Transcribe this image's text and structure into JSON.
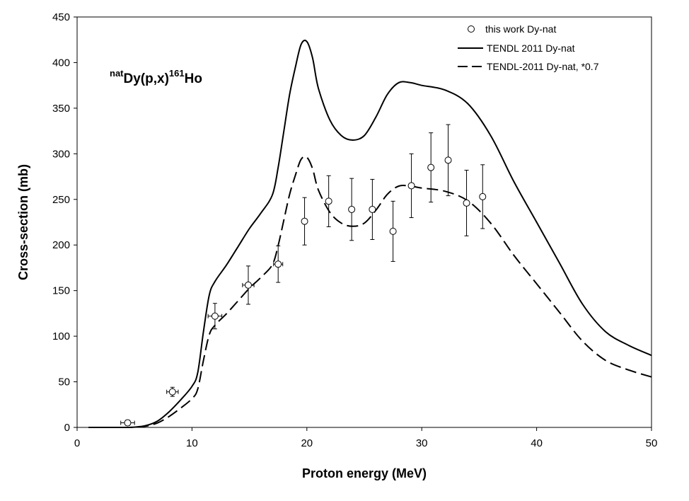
{
  "chart_data": {
    "type": "scatter",
    "title": "",
    "annotation": {
      "sup_left": "nat",
      "main": "Dy(p,x)",
      "sup_right": "161",
      "tail": "Ho"
    },
    "xlabel": "Proton energy (MeV)",
    "ylabel": "Cross-section (mb)",
    "xlim": [
      0,
      50
    ],
    "ylim": [
      0,
      450
    ],
    "xticks": [
      0,
      10,
      20,
      30,
      40,
      50
    ],
    "yticks": [
      0,
      50,
      100,
      150,
      200,
      250,
      300,
      350,
      400,
      450
    ],
    "grid": false,
    "legend_position": "top-right",
    "series": [
      {
        "name": "this work Dy-nat",
        "kind": "points",
        "points": [
          {
            "x": 4.4,
            "y": 5,
            "xerr": 0.6,
            "yerr": 3
          },
          {
            "x": 8.3,
            "y": 39,
            "xerr": 0.5,
            "yerr": 5
          },
          {
            "x": 12.0,
            "y": 122,
            "xerr": 0.6,
            "yerr": 14
          },
          {
            "x": 14.9,
            "y": 156,
            "xerr": 0.5,
            "yerr": 21
          },
          {
            "x": 17.5,
            "y": 179,
            "xerr": 0.4,
            "yerr": 20
          },
          {
            "x": 19.8,
            "y": 226,
            "xerr": 0,
            "yerr": 26
          },
          {
            "x": 21.9,
            "y": 248,
            "xerr": 0,
            "yerr": 28
          },
          {
            "x": 23.9,
            "y": 239,
            "xerr": 0,
            "yerr": 34
          },
          {
            "x": 25.7,
            "y": 239,
            "xerr": 0,
            "yerr": 33
          },
          {
            "x": 27.5,
            "y": 215,
            "xerr": 0,
            "yerr": 33
          },
          {
            "x": 29.1,
            "y": 265,
            "xerr": 0,
            "yerr": 35
          },
          {
            "x": 30.8,
            "y": 285,
            "xerr": 0,
            "yerr": 38
          },
          {
            "x": 32.3,
            "y": 293,
            "xerr": 0,
            "yerr": 39
          },
          {
            "x": 33.9,
            "y": 246,
            "xerr": 0,
            "yerr": 36
          },
          {
            "x": 35.3,
            "y": 253,
            "xerr": 0,
            "yerr": 35
          }
        ]
      },
      {
        "name": "TENDL 2011 Dy-nat",
        "kind": "solid",
        "x": [
          1,
          4,
          5,
          6,
          7,
          8,
          9,
          10,
          10.5,
          11,
          11.5,
          12,
          13,
          14,
          15,
          16,
          17,
          17.5,
          18,
          18.5,
          19,
          19.5,
          20,
          20.5,
          21,
          22,
          23,
          24,
          25,
          26,
          27,
          28,
          29,
          30,
          32,
          34,
          36,
          38,
          40,
          42,
          44,
          46,
          48,
          50
        ],
        "y": [
          0,
          0,
          0.3,
          2,
          7,
          17,
          30,
          45,
          60,
          105,
          145,
          160,
          178,
          198,
          218,
          235,
          255,
          285,
          325,
          365,
          395,
          420,
          423,
          405,
          372,
          337,
          320,
          315,
          320,
          340,
          365,
          378,
          378,
          375,
          370,
          355,
          320,
          270,
          225,
          180,
          135,
          105,
          90,
          79
        ]
      },
      {
        "name": "TENDL-2011 Dy-nat, *0.7",
        "kind": "dashed",
        "x": [
          1,
          4,
          5,
          6,
          7,
          8,
          9,
          10,
          10.5,
          11,
          11.5,
          12,
          13,
          14,
          15,
          16,
          17,
          17.5,
          18,
          18.5,
          19,
          19.5,
          20,
          20.5,
          21,
          22,
          23,
          24,
          25,
          26,
          27,
          28,
          29,
          30,
          32,
          34,
          36,
          38,
          40,
          42,
          44,
          46,
          48,
          50
        ],
        "y": [
          0,
          0,
          0.2,
          1.4,
          4.9,
          11.9,
          21,
          31.5,
          42,
          73.5,
          101.5,
          112,
          124.6,
          138.6,
          152.6,
          164.5,
          178.5,
          199.5,
          227.5,
          255.5,
          276.5,
          294,
          296.1,
          283.5,
          260.4,
          235.9,
          224,
          220.5,
          224,
          238,
          255.5,
          264.6,
          264.6,
          262.5,
          259,
          248.5,
          224,
          189,
          157.5,
          126,
          94.5,
          73.5,
          63,
          55.3
        ]
      }
    ]
  }
}
